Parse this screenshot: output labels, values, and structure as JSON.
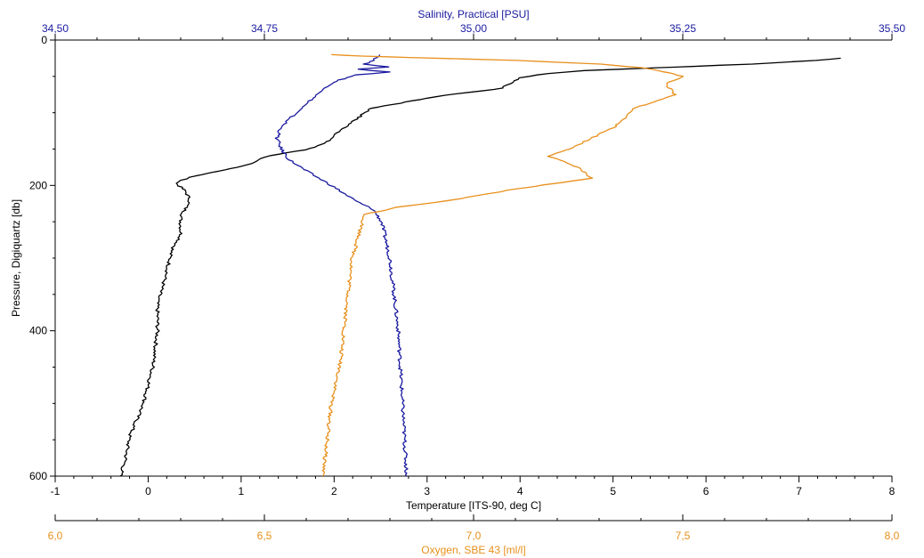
{
  "chart_data": {
    "type": "line",
    "title": "",
    "grid": false,
    "axes": {
      "pressure": {
        "label": "Pressure, Digiquartz [db]",
        "range": [
          0,
          600
        ],
        "ticks": [
          "0",
          "200",
          "400",
          "600"
        ],
        "inverted": true
      },
      "temperature": {
        "label": "Temperature [ITS-90, deg C]",
        "range": [
          -1,
          8
        ],
        "ticks": [
          "-1",
          "0",
          "1",
          "2",
          "3",
          "4",
          "5",
          "6",
          "7",
          "8"
        ],
        "color": "#000000"
      },
      "salinity": {
        "label": "Salinity, Practical [PSU]",
        "range": [
          34.5,
          35.5
        ],
        "ticks": [
          "34,50",
          "34,75",
          "35,00",
          "35,25",
          "35,50"
        ],
        "color": "#1a1aa0"
      },
      "oxygen": {
        "label": "Oxygen, SBE 43 [ml/l]",
        "range": [
          6.0,
          8.0
        ],
        "ticks": [
          "6,0",
          "6,5",
          "7,0",
          "7,5",
          "8,0"
        ],
        "color": "#e8901c"
      }
    },
    "series": [
      {
        "axis": "temperature",
        "color": "#000000",
        "points": [
          [
            7.45,
            25
          ],
          [
            7.2,
            28
          ],
          [
            6.5,
            33
          ],
          [
            5.5,
            38
          ],
          [
            4.7,
            42
          ],
          [
            4.3,
            46
          ],
          [
            4.0,
            52
          ],
          [
            3.9,
            60
          ],
          [
            3.8,
            66
          ],
          [
            3.6,
            70
          ],
          [
            3.3,
            74
          ],
          [
            3.0,
            80
          ],
          [
            2.7,
            87
          ],
          [
            2.4,
            94
          ],
          [
            2.3,
            103
          ],
          [
            2.2,
            112
          ],
          [
            2.1,
            122
          ],
          [
            2.0,
            132
          ],
          [
            1.9,
            142
          ],
          [
            1.7,
            151
          ],
          [
            1.4,
            157
          ],
          [
            1.2,
            163
          ],
          [
            1.1,
            170
          ],
          [
            0.9,
            177
          ],
          [
            0.7,
            182
          ],
          [
            0.5,
            187
          ],
          [
            0.4,
            191
          ],
          [
            0.3,
            197
          ],
          [
            0.4,
            208
          ],
          [
            0.45,
            220
          ],
          [
            0.4,
            232
          ],
          [
            0.35,
            245
          ],
          [
            0.35,
            270
          ],
          [
            0.25,
            290
          ],
          [
            0.2,
            320
          ],
          [
            0.1,
            360
          ],
          [
            0.1,
            400
          ],
          [
            0.05,
            450
          ],
          [
            -0.05,
            500
          ],
          [
            -0.2,
            545
          ],
          [
            -0.25,
            580
          ],
          [
            -0.3,
            600
          ]
        ]
      },
      {
        "axis": "salinity",
        "color": "#1a1aa0",
        "points": [
          [
            34.89,
            20
          ],
          [
            34.88,
            28
          ],
          [
            34.87,
            33
          ],
          [
            34.9,
            37
          ],
          [
            34.86,
            40
          ],
          [
            34.9,
            44
          ],
          [
            34.86,
            48
          ],
          [
            34.84,
            55
          ],
          [
            34.83,
            60
          ],
          [
            34.82,
            70
          ],
          [
            34.81,
            78
          ],
          [
            34.8,
            88
          ],
          [
            34.79,
            98
          ],
          [
            34.78,
            108
          ],
          [
            34.77,
            120
          ],
          [
            34.765,
            135
          ],
          [
            34.77,
            150
          ],
          [
            34.78,
            165
          ],
          [
            34.8,
            180
          ],
          [
            34.83,
            200
          ],
          [
            34.86,
            222
          ],
          [
            34.88,
            233
          ],
          [
            34.89,
            250
          ],
          [
            34.9,
            300
          ],
          [
            34.91,
            400
          ],
          [
            34.915,
            500
          ],
          [
            34.92,
            600
          ]
        ]
      },
      {
        "axis": "oxygen",
        "color": "#e8901c",
        "points": [
          [
            6.66,
            20
          ],
          [
            6.73,
            22
          ],
          [
            6.85,
            24
          ],
          [
            7.1,
            28
          ],
          [
            7.3,
            33
          ],
          [
            7.4,
            38
          ],
          [
            7.47,
            45
          ],
          [
            7.5,
            50
          ],
          [
            7.46,
            60
          ],
          [
            7.48,
            75
          ],
          [
            7.43,
            85
          ],
          [
            7.38,
            95
          ],
          [
            7.35,
            115
          ],
          [
            7.3,
            130
          ],
          [
            7.23,
            150
          ],
          [
            7.18,
            160
          ],
          [
            7.25,
            175
          ],
          [
            7.28,
            190
          ],
          [
            7.1,
            205
          ],
          [
            6.95,
            220
          ],
          [
            6.82,
            230
          ],
          [
            6.74,
            240
          ],
          [
            6.73,
            260
          ],
          [
            6.71,
            300
          ],
          [
            6.7,
            350
          ],
          [
            6.69,
            400
          ],
          [
            6.68,
            450
          ],
          [
            6.66,
            500
          ],
          [
            6.65,
            550
          ],
          [
            6.64,
            600
          ]
        ]
      }
    ]
  }
}
